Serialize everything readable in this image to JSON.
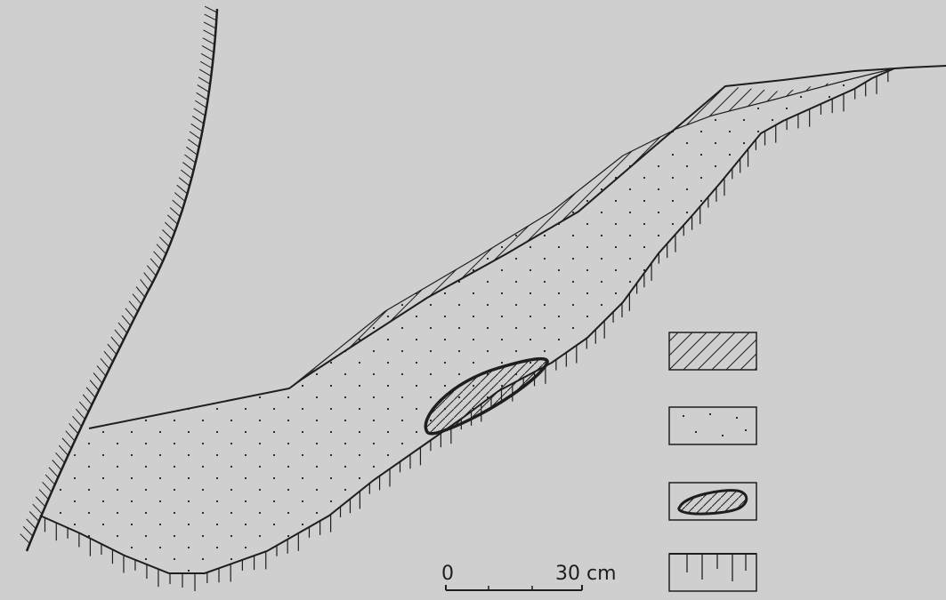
{
  "colors": {
    "background": "#cfcfd0",
    "ink": "#1e1e1e"
  },
  "scale_bar": {
    "start_label": "0",
    "end_label": "30 cm",
    "divisions": 4
  },
  "legend": {
    "items": [
      {
        "pattern": "diagonal-hatch-icon"
      },
      {
        "pattern": "dot-stipple-icon"
      },
      {
        "pattern": "lens-inclusion-icon"
      },
      {
        "pattern": "vertical-tick-icon"
      }
    ]
  }
}
